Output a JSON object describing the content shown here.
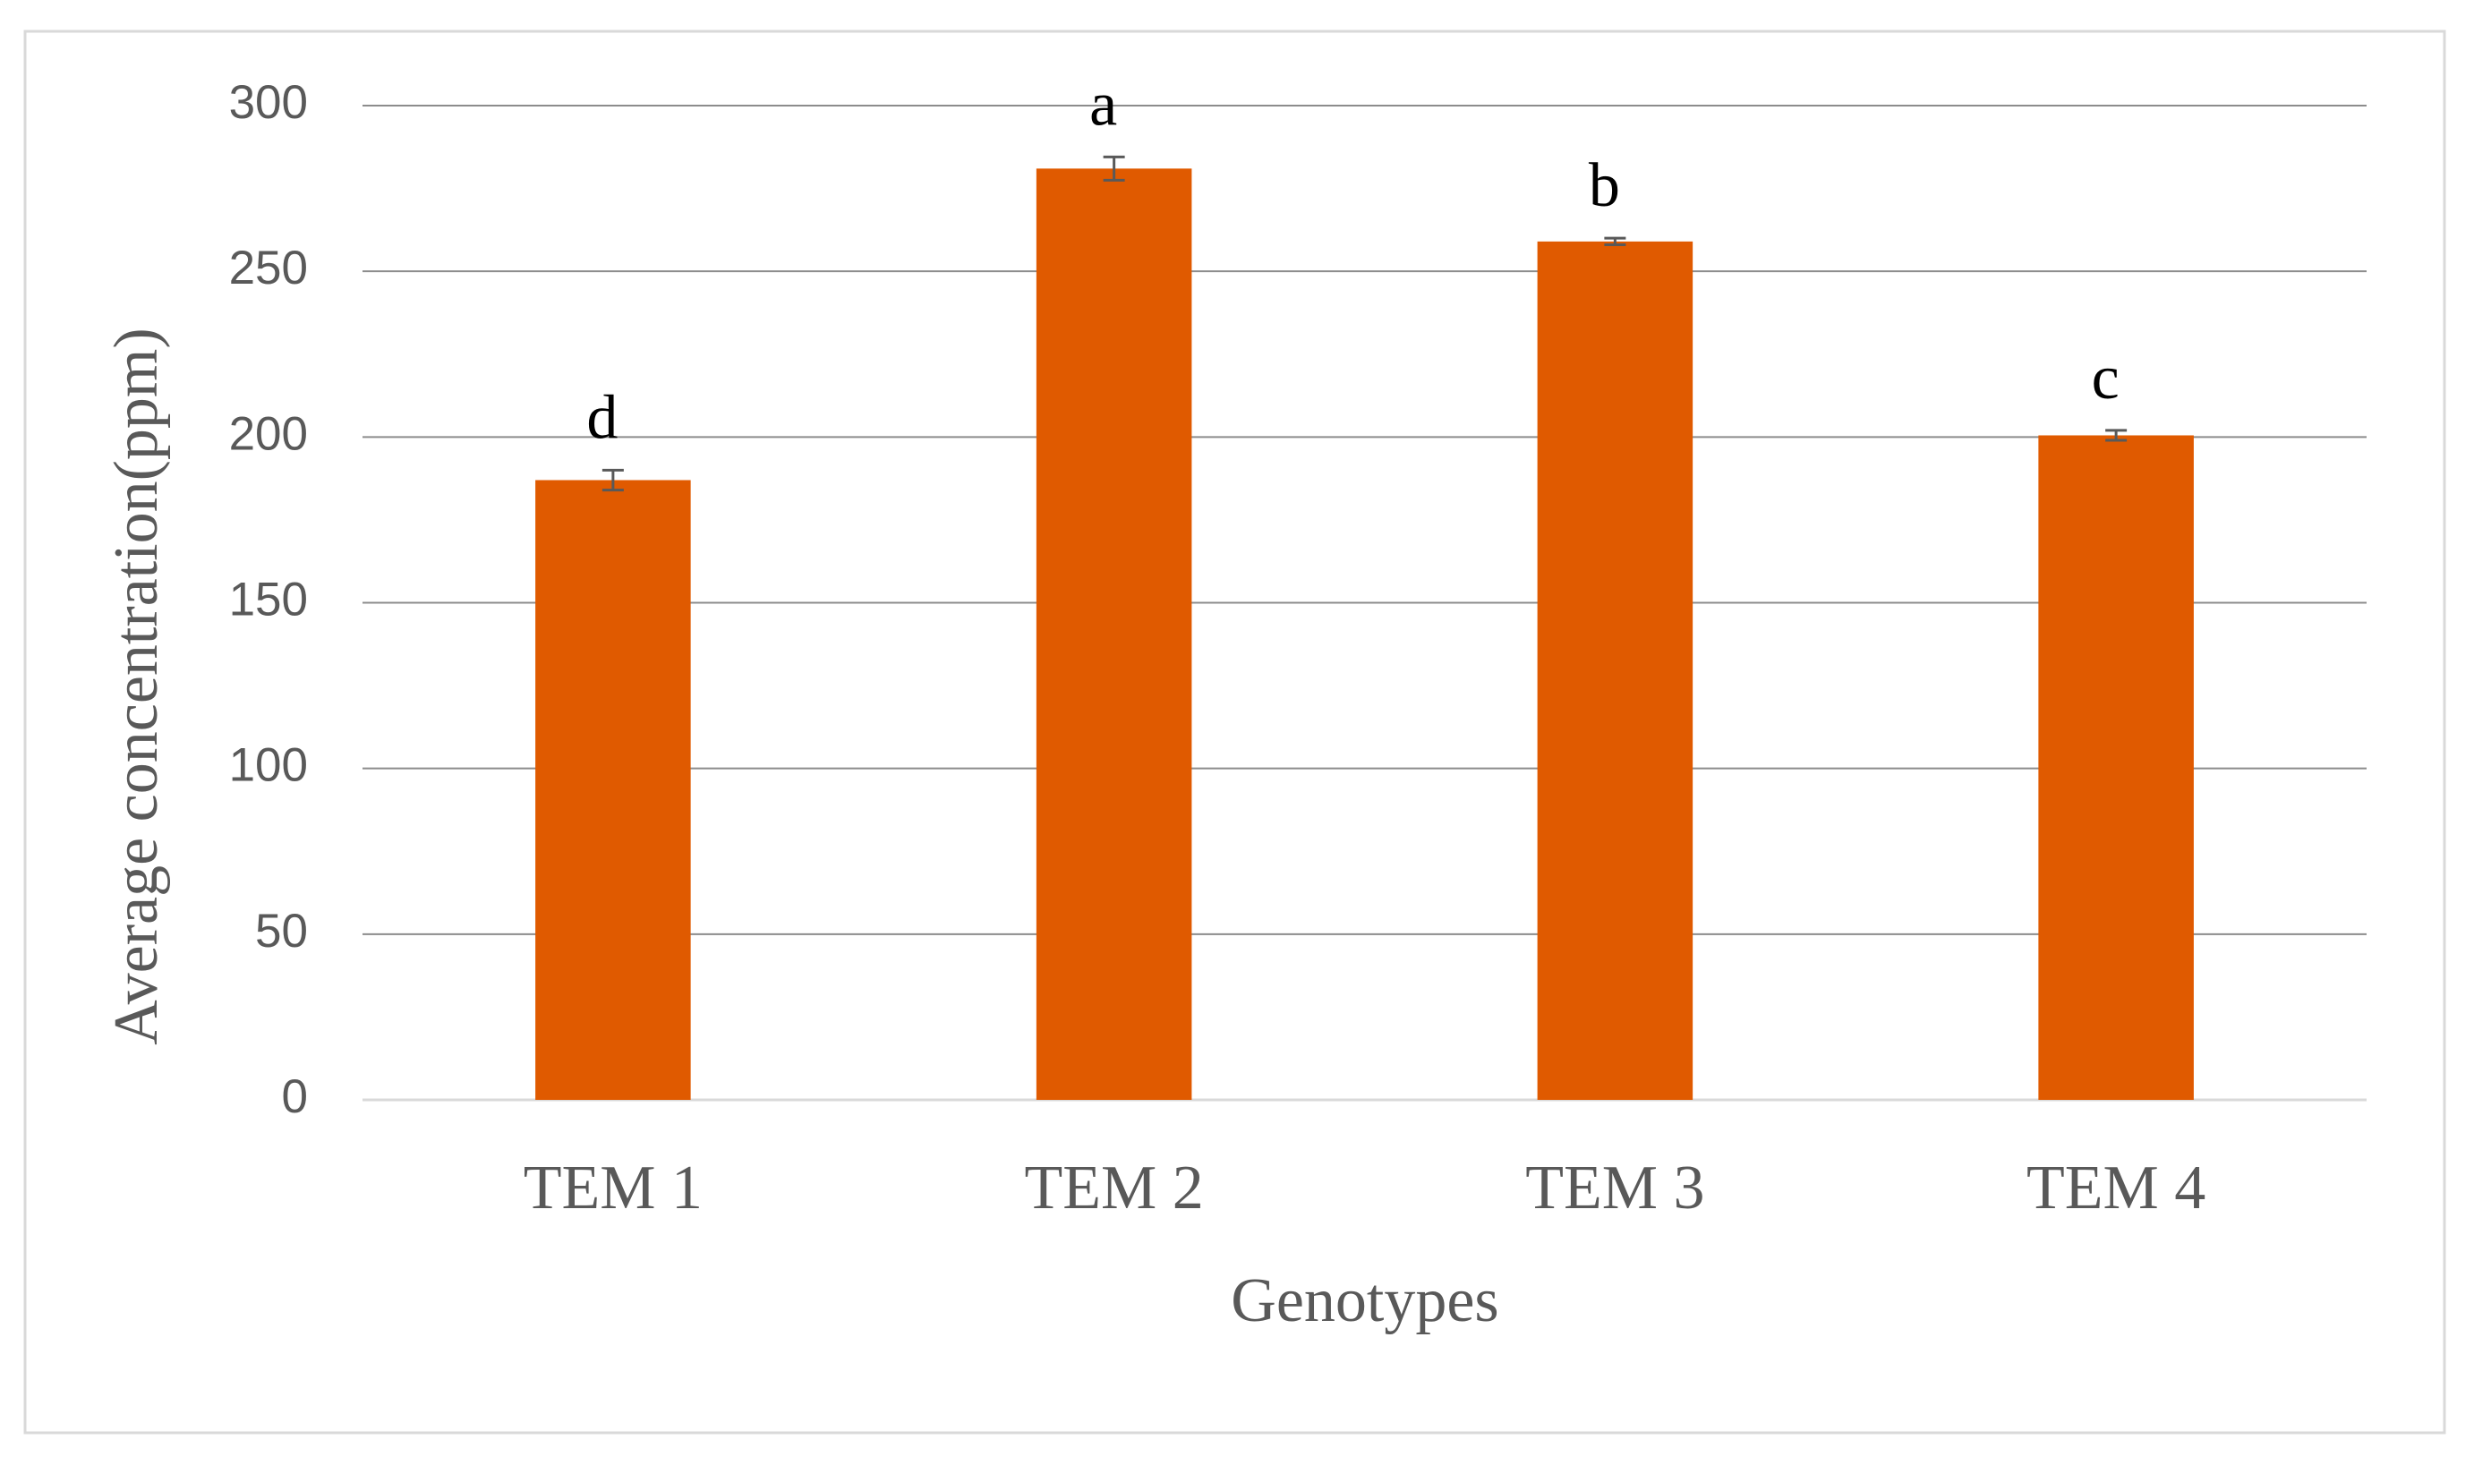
{
  "chart_data": {
    "type": "bar",
    "x_label": "Genotypes",
    "y_label": "Average concentration(ppm)",
    "categories": [
      "TEM 1",
      "TEM 2",
      "TEM 3",
      "TEM 4"
    ],
    "values": [
      187,
      281,
      259,
      200.5
    ],
    "errors": [
      3,
      3.5,
      1,
      1.5
    ],
    "annotations": [
      "d",
      "a",
      "b",
      "c"
    ],
    "color": "#e05a00",
    "ylim": [
      0,
      300
    ],
    "yticks": [
      0,
      50,
      100,
      150,
      200,
      250,
      300
    ],
    "grid": true
  }
}
